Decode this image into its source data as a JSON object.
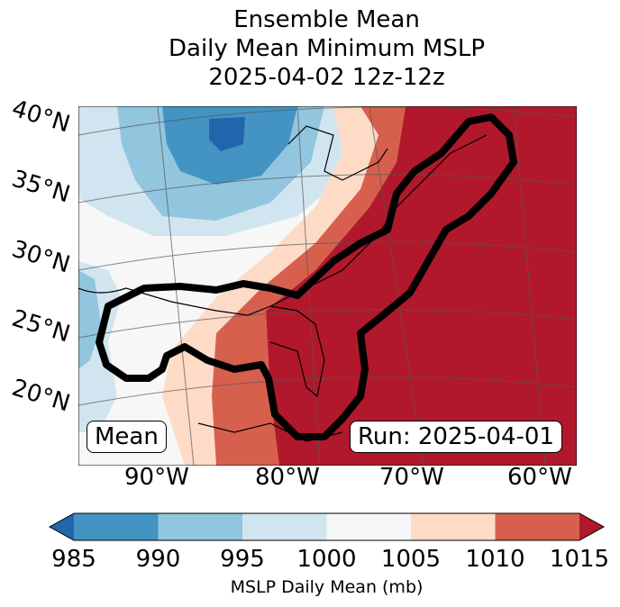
{
  "title": {
    "line1": "Ensemble Mean",
    "line2": "Daily Mean Minimum MSLP",
    "line3": "2025-04-02 12z-12z"
  },
  "lat_labels": [
    "40°N",
    "35°N",
    "30°N",
    "25°N",
    "20°N"
  ],
  "lon_labels": [
    "90°W",
    "80°W",
    "70°W",
    "60°W"
  ],
  "map_labels": {
    "left": "Mean",
    "right": "Run: 2025-04-01"
  },
  "colorbar": {
    "ticks": [
      "985",
      "990",
      "995",
      "1000",
      "1005",
      "1010",
      "1015"
    ],
    "label": "MSLP Daily Mean (mb)",
    "colors": [
      "#4393c3",
      "#92c5de",
      "#d1e5f0",
      "#f7f7f7",
      "#fddbc7",
      "#d6604d"
    ],
    "under_color": "#2166ac",
    "over_color": "#b2182b"
  }
}
